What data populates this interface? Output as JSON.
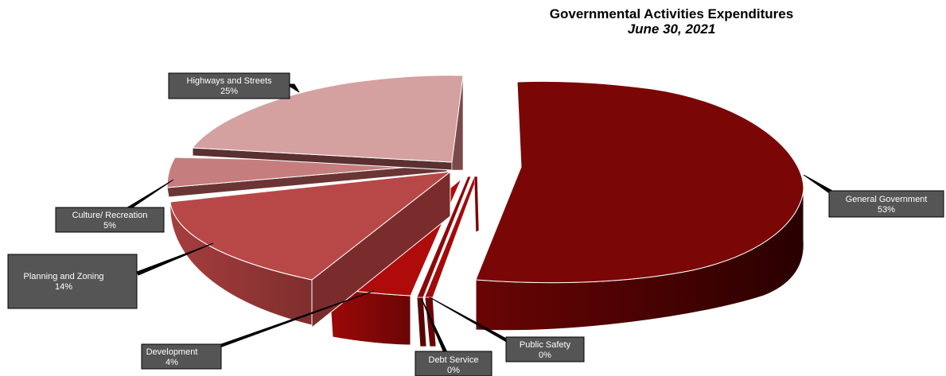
{
  "chart_data": {
    "type": "pie",
    "title": "Governmental Activities Expenditures",
    "subtitle": "June 30, 2021",
    "slices": [
      {
        "label": "General Government",
        "percent_label": "53%",
        "value": 53,
        "color": "#7a0606"
      },
      {
        "label": "Public Safety",
        "percent_label": "0%",
        "value": 0.4,
        "color": "#a30a0a"
      },
      {
        "label": "Debt Service",
        "percent_label": "0%",
        "value": 0.4,
        "color": "#8c0808"
      },
      {
        "label": "Development",
        "percent_label": "4%",
        "value": 4,
        "color": "#b00b0b"
      },
      {
        "label": "Planning and Zoning",
        "percent_label": "14%",
        "value": 14,
        "color": "#b84848"
      },
      {
        "label": "Culture/ Recreation",
        "percent_label": "5%",
        "value": 5,
        "color": "#c67d7d"
      },
      {
        "label": "Highways and Streets",
        "percent_label": "25%",
        "value": 25,
        "color": "#d4a0a0"
      }
    ],
    "style": "3d-exploded"
  }
}
